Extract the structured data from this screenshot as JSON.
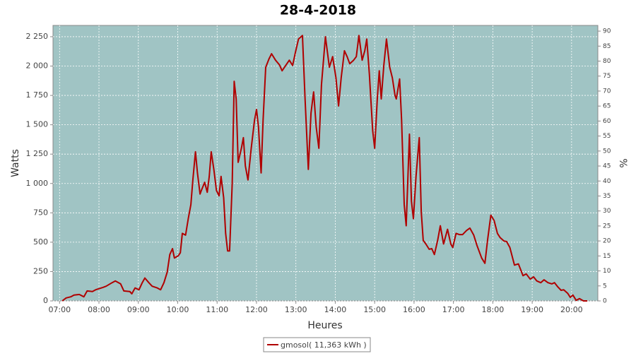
{
  "chart_data": {
    "type": "line",
    "title": "28-4-2018",
    "x_label": "Heures",
    "y_label": "Watts",
    "y2_label": "%",
    "x": [
      "07:04",
      "07:10",
      "07:17",
      "07:22",
      "07:30",
      "07:37",
      "07:42",
      "07:50",
      "07:55",
      "08:06",
      "08:11",
      "08:20",
      "08:25",
      "08:33",
      "08:38",
      "08:47",
      "08:50",
      "08:55",
      "09:01",
      "09:06",
      "09:10",
      "09:16",
      "09:21",
      "09:29",
      "09:34",
      "09:39",
      "09:44",
      "09:48",
      "09:52",
      "09:55",
      "10:01",
      "10:04",
      "10:07",
      "10:12",
      "10:16",
      "10:20",
      "10:23",
      "10:27",
      "10:30",
      "10:34",
      "10:36",
      "10:41",
      "10:45",
      "10:48",
      "10:51",
      "10:55",
      "10:59",
      "11:03",
      "11:06",
      "11:10",
      "11:13",
      "11:16",
      "11:19",
      "11:23",
      "11:26",
      "11:29",
      "11:32",
      "11:37",
      "11:40",
      "11:43",
      "11:47",
      "11:52",
      "11:57",
      "12:00",
      "12:03",
      "12:07",
      "12:10",
      "12:14",
      "12:19",
      "12:23",
      "12:29",
      "12:35",
      "12:39",
      "12:45",
      "12:50",
      "12:55",
      "12:59",
      "13:04",
      "13:10",
      "13:14",
      "13:19",
      "13:23",
      "13:27",
      "13:31",
      "13:35",
      "13:39",
      "13:45",
      "13:51",
      "13:56",
      "14:01",
      "14:05",
      "14:09",
      "14:14",
      "14:18",
      "14:22",
      "14:28",
      "14:32",
      "14:36",
      "14:41",
      "14:45",
      "14:48",
      "14:52",
      "14:57",
      "15:00",
      "15:04",
      "15:07",
      "15:10",
      "15:14",
      "15:18",
      "15:23",
      "15:27",
      "15:31",
      "15:33",
      "15:38",
      "15:41",
      "15:45",
      "15:48",
      "15:53",
      "15:56",
      "15:59",
      "16:03",
      "16:08",
      "16:11",
      "16:14",
      "16:18",
      "16:23",
      "16:27",
      "16:31",
      "16:36",
      "16:40",
      "16:45",
      "16:51",
      "16:56",
      "16:59",
      "17:04",
      "17:09",
      "17:14",
      "17:20",
      "17:25",
      "17:31",
      "17:36",
      "17:43",
      "17:48",
      "17:52",
      "17:57",
      "18:02",
      "18:07",
      "18:11",
      "18:17",
      "18:21",
      "18:26",
      "18:33",
      "18:39",
      "18:46",
      "18:51",
      "18:57",
      "19:02",
      "19:07",
      "19:13",
      "19:18",
      "19:24",
      "19:30",
      "19:34",
      "19:39",
      "19:44",
      "19:48",
      "19:54",
      "19:58",
      "20:02",
      "20:07",
      "20:12",
      "20:18",
      "20:24"
    ],
    "series": [
      {
        "name": "gmosol( 11,363 kWh )",
        "color": "#b00000",
        "values": [
          0,
          25,
          35,
          50,
          55,
          35,
          85,
          80,
          95,
          115,
          125,
          155,
          170,
          145,
          85,
          80,
          60,
          110,
          95,
          155,
          195,
          155,
          125,
          110,
          95,
          155,
          245,
          395,
          445,
          365,
          385,
          410,
          575,
          560,
          700,
          820,
          1030,
          1270,
          1090,
          910,
          940,
          1010,
          925,
          1060,
          1270,
          1120,
          940,
          895,
          1060,
          880,
          575,
          425,
          425,
          1000,
          1870,
          1720,
          1180,
          1300,
          1390,
          1150,
          1030,
          1300,
          1540,
          1630,
          1480,
          1090,
          1540,
          1990,
          2060,
          2105,
          2050,
          2010,
          1960,
          2010,
          2050,
          2005,
          2110,
          2230,
          2260,
          1720,
          1120,
          1600,
          1780,
          1480,
          1300,
          1840,
          2250,
          1990,
          2080,
          1900,
          1660,
          1900,
          2130,
          2080,
          2020,
          2050,
          2080,
          2260,
          2050,
          2130,
          2230,
          1930,
          1450,
          1300,
          1720,
          1960,
          1720,
          2010,
          2230,
          1990,
          1900,
          1750,
          1720,
          1890,
          1540,
          820,
          640,
          1420,
          850,
          700,
          1060,
          1390,
          760,
          515,
          485,
          440,
          445,
          395,
          515,
          640,
          485,
          610,
          485,
          455,
          575,
          565,
          565,
          600,
          620,
          560,
          470,
          365,
          320,
          515,
          730,
          685,
          575,
          540,
          510,
          505,
          455,
          305,
          315,
          215,
          230,
          185,
          205,
          170,
          155,
          180,
          155,
          145,
          155,
          120,
          90,
          95,
          65,
          30,
          50,
          5,
          20,
          0,
          0
        ]
      }
    ],
    "xlim": [
      "06:50",
      "20:40"
    ],
    "xticks": [
      "07:00",
      "08:00",
      "09:00",
      "10:00",
      "11:00",
      "12:00",
      "13:00",
      "14:00",
      "15:00",
      "16:00",
      "17:00",
      "18:00",
      "19:00",
      "20:00"
    ],
    "ylim": [
      0,
      2346
    ],
    "yticks": [
      0,
      250,
      500,
      750,
      {
        "value": 1000,
        "label": "1 000"
      },
      {
        "value": 1250,
        "label": "1 250"
      },
      {
        "value": 1500,
        "label": "1 500"
      },
      {
        "value": 1750,
        "label": "1 750"
      },
      {
        "value": 2000,
        "label": "2 000"
      },
      {
        "value": 2250,
        "label": "2 250"
      }
    ],
    "y2lim": [
      0,
      91.9
    ],
    "y2ticks": [
      0,
      5,
      10,
      15,
      20,
      25,
      30,
      35,
      40,
      45,
      50,
      55,
      60,
      65,
      70,
      75,
      80,
      85,
      90
    ],
    "grid": true,
    "background": "#a0c4c4",
    "legend": "bottom"
  }
}
